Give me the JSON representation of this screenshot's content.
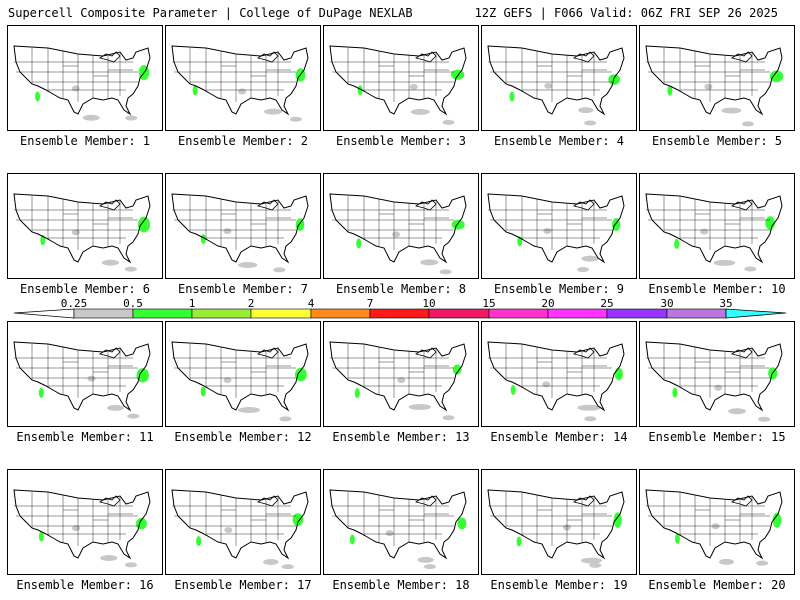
{
  "header": {
    "left": "Supercell Composite Parameter | College of DuPage NEXLAB",
    "right": "12Z GEFS | F066 Valid: 06Z FRI SEP 26 2025"
  },
  "panel_label_prefix": "Ensemble Member: ",
  "members": [
    "1",
    "2",
    "3",
    "4",
    "5",
    "6",
    "7",
    "8",
    "9",
    "10",
    "11",
    "12",
    "13",
    "14",
    "15",
    "16",
    "17",
    "18",
    "19",
    "20"
  ],
  "colorbar": {
    "labels": [
      "0.25",
      "0.5",
      "1",
      "2",
      "4",
      "7",
      "10",
      "15",
      "20",
      "25",
      "30",
      "35"
    ],
    "colors": [
      "#c8c8c8",
      "#33ff33",
      "#99ee33",
      "#ffff33",
      "#ff8c1a",
      "#ff1a1a",
      "#ee1a66",
      "#ff33cc",
      "#ff33ff",
      "#9933ff",
      "#bb77dd",
      "#33ffff"
    ]
  },
  "map_colors": {
    "land_lines": "#000000",
    "state_lines": "#000000",
    "low_value_shade": "#c8c8c8",
    "green_shade": "#33ff33"
  }
}
